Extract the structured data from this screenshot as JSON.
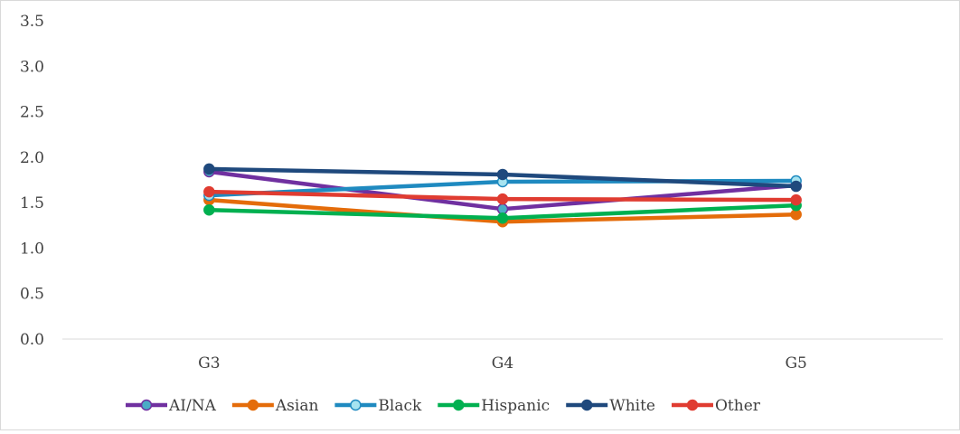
{
  "chart_data": {
    "type": "line",
    "title": "",
    "xlabel": "",
    "ylabel": "",
    "categories": [
      "G3",
      "G4",
      "G5"
    ],
    "ylim": [
      0.0,
      3.5
    ],
    "yticks": [
      "0.0",
      "0.5",
      "1.0",
      "1.5",
      "2.0",
      "2.5",
      "3.0",
      "3.5"
    ],
    "grid": false,
    "legend": "bottom",
    "series": [
      {
        "name": "AI/NA",
        "color": "#7030a0",
        "marker_fill": "#4bacc6",
        "values": [
          1.84,
          1.43,
          1.69
        ]
      },
      {
        "name": "Asian",
        "color": "#e46c0a",
        "marker_fill": "#e46c0a",
        "values": [
          1.53,
          1.29,
          1.37
        ]
      },
      {
        "name": "Black",
        "color": "#1f8ac0",
        "marker_fill": "#a6e3f0",
        "values": [
          1.58,
          1.73,
          1.74
        ]
      },
      {
        "name": "Hispanic",
        "color": "#00b050",
        "marker_fill": "#00b050",
        "values": [
          1.42,
          1.33,
          1.47
        ]
      },
      {
        "name": "White",
        "color": "#1f497d",
        "marker_fill": "#1f497d",
        "values": [
          1.87,
          1.81,
          1.68
        ]
      },
      {
        "name": "Other",
        "color": "#e03c31",
        "marker_fill": "#e03c31",
        "values": [
          1.62,
          1.54,
          1.53
        ]
      }
    ]
  }
}
